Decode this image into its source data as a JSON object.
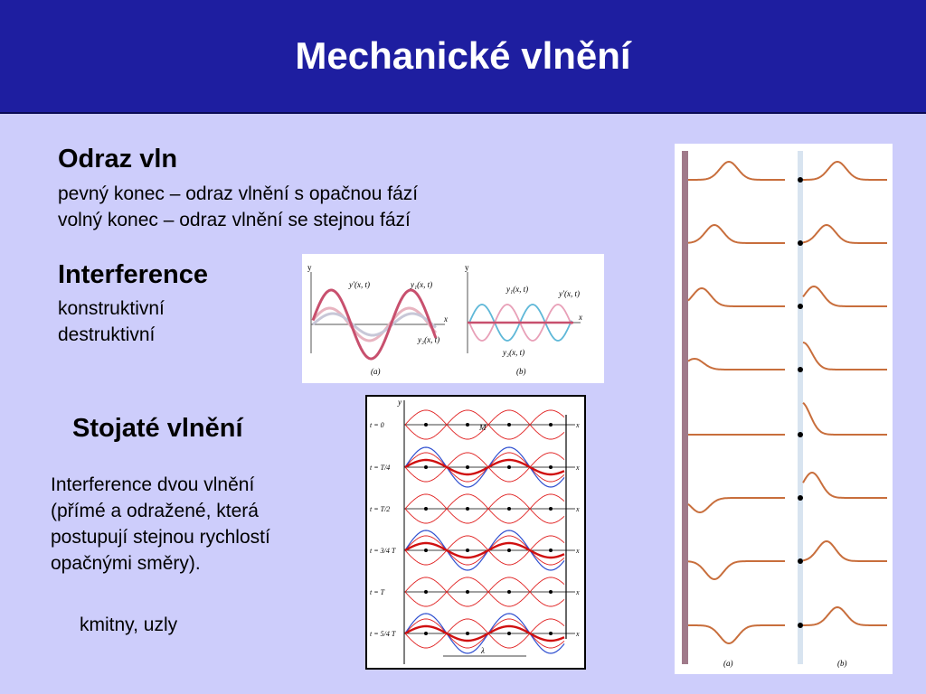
{
  "slide": {
    "title": "Mechanické vlnění",
    "reflection": {
      "heading": "Odraz vln",
      "line1": "pevný konec – odraz vlnění s opačnou fází",
      "line2": "volný konec – odraz vlnění se stejnou fází"
    },
    "interference": {
      "heading": "Interference",
      "item1": "konstruktivní",
      "item2": "destruktivní"
    },
    "standing": {
      "heading": "Stojaté vlnění",
      "desc1": "Interference dvou vlnění",
      "desc2": "(přímé a odražené, která",
      "desc3": "postupují stejnou rychlostí",
      "desc4": "opačnými směry).",
      "note": "kmitny, uzly"
    }
  },
  "figures": {
    "interference": {
      "axis_y": "y",
      "axis_x": "x",
      "label_sum": "y′(x, t)",
      "label_y1": "y₁(x, t)",
      "label_y2": "y₂(x, t)",
      "caption_a": "(a)",
      "caption_b": "(b)"
    },
    "standing": {
      "axis_y": "y",
      "axis_x": "x",
      "times": [
        "t = 0",
        "t = T/4",
        "t = T/2",
        "t = 3/4 T",
        "t = T",
        "t = 5/4 T"
      ],
      "point_M": "M",
      "lambda": "λ"
    },
    "reflection": {
      "caption_a": "(a)",
      "caption_b": "(b)"
    }
  },
  "colors": {
    "title_bg": "#1e1ea0",
    "slide_bg": "#cdcdfb",
    "wave_pink": "#c8506e",
    "wave_blue": "#5fb8d8",
    "wave_red": "#e02020",
    "pulse_orange": "#c86e3c"
  }
}
